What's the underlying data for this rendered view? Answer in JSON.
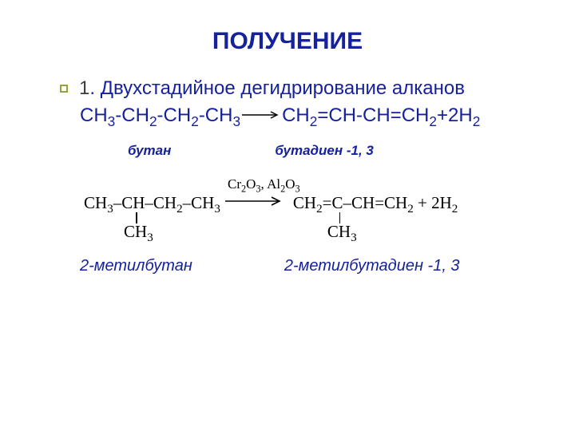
{
  "title": {
    "text": "ПОЛУЧЕНИЕ",
    "color": "#16219c",
    "fontsize": 30
  },
  "bullet": {
    "color": "#8fa63a"
  },
  "subtitle": {
    "num": "1",
    "text": ". Двухстадийное дегидрирование алканов",
    "num_color": "#3b3b3b",
    "text_color": "#16219c",
    "fontsize": 24
  },
  "reaction1": {
    "color": "#16219c",
    "fontsize": 24,
    "left_parts": [
      "CH",
      "3",
      "-CH",
      "2",
      "-CH",
      "2",
      "-CH",
      "3"
    ],
    "right_parts": [
      "CH",
      "2",
      "=CH-CH=CH",
      "2",
      "+2H",
      "2"
    ],
    "arrow_color": "#000000"
  },
  "labels1": {
    "butan": "бутан",
    "butadien": "бутадиен -1, 3",
    "color": "#16219c",
    "fontsize": 17
  },
  "reaction2": {
    "catalyst_parts": [
      "Cr",
      "2",
      "O",
      "3",
      ", Al",
      "2",
      "O",
      "3"
    ],
    "catalyst_fontsize": 17,
    "left_parts": [
      "CH",
      "3",
      "–CH–CH",
      "2",
      "–CH",
      "3"
    ],
    "right_parts": [
      "CH",
      "2",
      "=C–CH=CH",
      "2",
      " + 2H",
      "2"
    ],
    "ch3": "CH",
    "ch3_sub": "3",
    "color": "#000000",
    "fontsize": 21
  },
  "labels2": {
    "mb": "2-метилбутан",
    "mbd": "2-метилбутадиен -1, 3",
    "color": "#16219c",
    "fontsize": 20
  }
}
